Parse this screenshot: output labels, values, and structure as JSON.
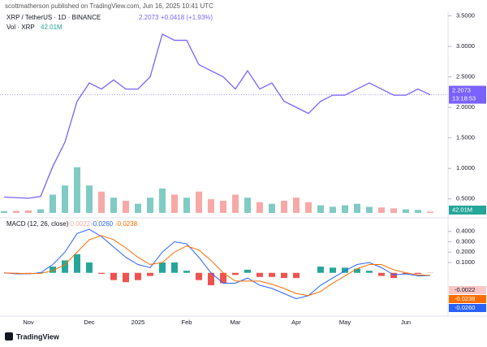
{
  "header": "scottmatherson published on TradingView.com, Jun 16, 2025 10:41 UTC",
  "footer": "TradingView",
  "chart_data": [
    {
      "type": "line",
      "title": "XRP / TetherUS · 1D · BINANCE",
      "change": "+0.0418 (+1.93%)",
      "volume_title": "Vol · XRP",
      "countdown": "13:18:53",
      "categories": [
        null,
        null,
        "Nov",
        null,
        null,
        null,
        null,
        "Dec",
        null,
        null,
        null,
        "2025",
        null,
        null,
        null,
        "Feb",
        null,
        null,
        null,
        "Mar",
        null,
        null,
        null,
        null,
        "Apr",
        null,
        null,
        null,
        "May",
        null,
        null,
        null,
        null,
        "Jun",
        null,
        null
      ],
      "series": [
        {
          "name": "XRP",
          "type": "line",
          "color": "#7b61ff",
          "values": [
            0.53,
            0.52,
            0.51,
            0.54,
            1.03,
            1.43,
            2.1,
            2.4,
            2.3,
            2.45,
            2.3,
            2.3,
            2.5,
            3.2,
            3.1,
            3.1,
            2.7,
            2.6,
            2.5,
            2.3,
            2.6,
            2.3,
            2.4,
            2.1,
            2.0,
            1.9,
            2.1,
            2.2,
            2.2,
            2.3,
            2.4,
            2.3,
            2.2,
            2.2,
            2.3,
            2.2073
          ]
        },
        {
          "name": "Vol",
          "type": "bar",
          "axis": "y2",
          "up_color": "#80cbc4",
          "down_color": "#f7a9a7",
          "last_label": "42.01M",
          "values": [
            60,
            70,
            80,
            120,
            600,
            900,
            1500,
            900,
            700,
            500,
            400,
            300,
            500,
            800,
            600,
            500,
            700,
            450,
            400,
            600,
            500,
            350,
            300,
            400,
            500,
            350,
            250,
            200,
            250,
            300,
            200,
            180,
            150,
            120,
            100,
            42.01
          ]
        }
      ],
      "ylim": [
        0.27,
        3.6
      ],
      "yticks": [
        {
          "value": 0.5,
          "label": "0.5000"
        },
        {
          "value": 1.0,
          "label": "1.0000"
        },
        {
          "value": 1.5,
          "label": "1.5000"
        },
        {
          "value": 2.0,
          "label": "2.0000"
        },
        {
          "value": 2.5,
          "label": "2.5000"
        },
        {
          "value": 3.0,
          "label": "3.0000"
        },
        {
          "value": 3.5,
          "label": "3.5000"
        }
      ],
      "y2lim": [
        0,
        4000
      ]
    },
    {
      "type": "line",
      "title": "MACD (12, 26, close)",
      "series": [
        {
          "name": "Histogram",
          "type": "bar",
          "up_color": "#26a69a",
          "down_color": "#ef5350",
          "values": [
            0,
            -0.005,
            -0.002,
            0.005,
            0.06,
            0.12,
            0.18,
            0.1,
            -0.01,
            -0.07,
            -0.09,
            -0.07,
            -0.03,
            0.1,
            0.1,
            0.02,
            -0.07,
            -0.12,
            -0.1,
            -0.02,
            0.03,
            -0.04,
            -0.04,
            -0.05,
            -0.05,
            0.0,
            0.06,
            0.05,
            0.05,
            0.04,
            0.02,
            -0.03,
            -0.05,
            -0.01,
            -0.01,
            -0.0022
          ]
        },
        {
          "name": "MACD",
          "type": "line",
          "color": "#2962ff",
          "last_label": "-0.0260",
          "values": [
            0.0,
            -0.01,
            -0.01,
            0.0,
            0.08,
            0.2,
            0.38,
            0.42,
            0.35,
            0.25,
            0.15,
            0.08,
            0.05,
            0.2,
            0.3,
            0.28,
            0.15,
            0.0,
            -0.1,
            -0.1,
            -0.05,
            -0.12,
            -0.15,
            -0.2,
            -0.25,
            -0.22,
            -0.12,
            -0.05,
            0.02,
            0.08,
            0.1,
            0.05,
            -0.02,
            -0.01,
            -0.03,
            -0.026
          ]
        },
        {
          "name": "Signal",
          "type": "line",
          "color": "#ff6d00",
          "last_label": "-0.0238",
          "values": [
            0.0,
            -0.005,
            -0.008,
            -0.005,
            0.02,
            0.08,
            0.2,
            0.32,
            0.36,
            0.32,
            0.24,
            0.15,
            0.08,
            0.1,
            0.2,
            0.26,
            0.22,
            0.12,
            0.0,
            -0.08,
            -0.08,
            -0.08,
            -0.11,
            -0.15,
            -0.2,
            -0.22,
            -0.18,
            -0.1,
            -0.03,
            0.04,
            0.08,
            0.08,
            0.03,
            0.0,
            -0.02,
            -0.0238
          ]
        }
      ],
      "ylim": [
        -0.41,
        0.5
      ],
      "yticks": [
        {
          "value": 0.1,
          "label": "0.1000"
        },
        {
          "value": 0.2,
          "label": "0.2000"
        },
        {
          "value": 0.3,
          "label": "0.3000"
        },
        {
          "value": 0.4,
          "label": "0.4000"
        }
      ]
    }
  ]
}
